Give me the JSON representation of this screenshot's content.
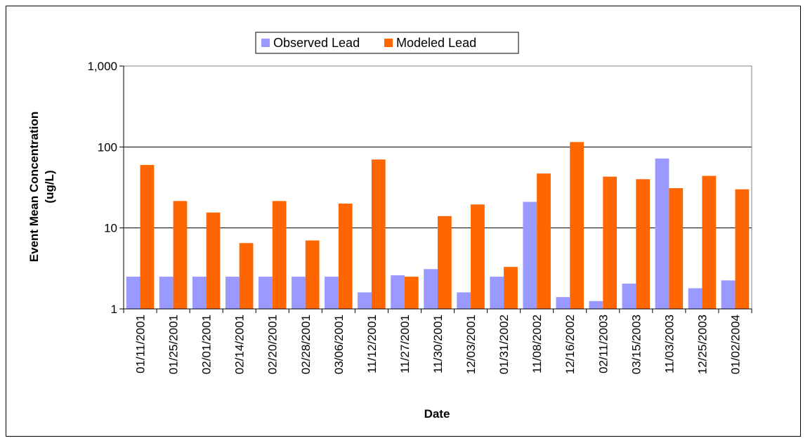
{
  "chart_data": {
    "type": "bar",
    "xlabel": "Date",
    "ylabel_line1": "Event Mean Concentration",
    "ylabel_line2": "(ug/L)",
    "yscale": "log",
    "ylim": [
      1,
      1000
    ],
    "yticks": [
      1,
      10,
      100,
      1000
    ],
    "ytick_labels": [
      "1",
      "10",
      "100",
      "1,000"
    ],
    "grid": "horizontal major gridlines",
    "legend_position": "top-center",
    "categories": [
      "01/11/2001",
      "01/25/2001",
      "02/01/2001",
      "02/14/2001",
      "02/20/2001",
      "02/28/2001",
      "03/06/2001",
      "11/12/2001",
      "11/27/2001",
      "11/30/2001",
      "12/03/2001",
      "01/31/2002",
      "11/08/2002",
      "12/16/2002",
      "02/11/2003",
      "03/15/2003",
      "11/03/2003",
      "12/25/2003",
      "01/02/2004"
    ],
    "series": [
      {
        "name": "Observed Lead",
        "color": "#9999ff",
        "values": [
          2.5,
          2.5,
          2.5,
          2.5,
          2.5,
          2.5,
          2.5,
          1.6,
          2.6,
          3.1,
          1.6,
          2.5,
          21,
          1.4,
          1.25,
          2.05,
          72,
          1.8,
          2.25
        ]
      },
      {
        "name": "Modeled Lead",
        "color": "#ff6600",
        "values": [
          60,
          21.5,
          15.5,
          6.5,
          21.5,
          7,
          20,
          70,
          2.5,
          14,
          19.5,
          3.3,
          47,
          115,
          43,
          40,
          31,
          44,
          30
        ]
      }
    ]
  }
}
